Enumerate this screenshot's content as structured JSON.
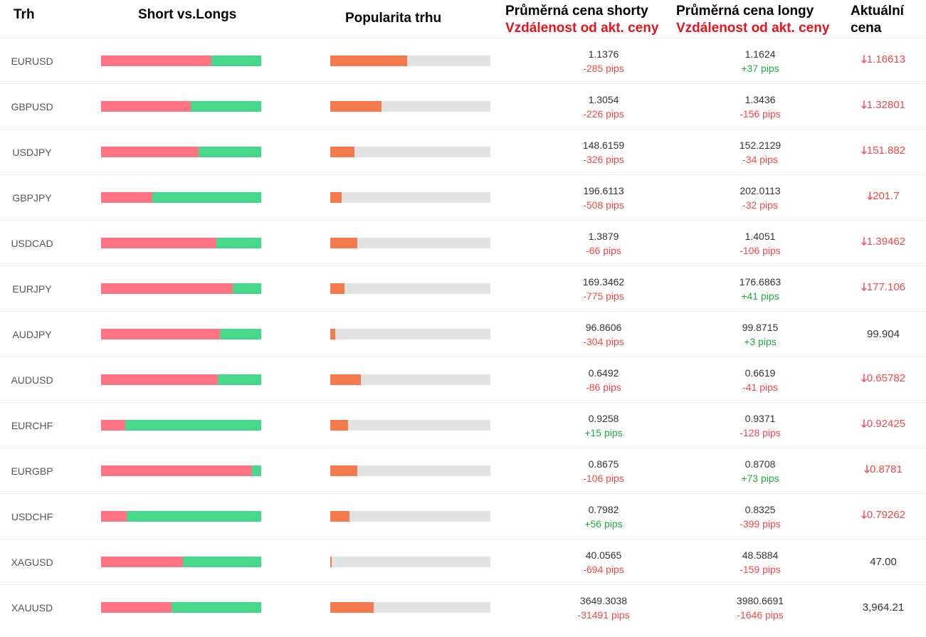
{
  "header": {
    "market": "Trh",
    "short_long": "Short vs.Longs",
    "popularity": "Popularita trhu",
    "avg_short": "Průměrná cena shorty",
    "avg_long": "Průměrná cena longy",
    "distance": "Vzdálenost od akt. ceny",
    "current_1": "Aktuální",
    "current_2": "cena"
  },
  "colors": {
    "short": "#ff7480",
    "long": "#48d88c",
    "popularity": "#f27a4b",
    "negative": "#f54646",
    "positive": "#1eaa3c"
  },
  "rows": [
    {
      "symbol": "EURUSD",
      "short_pct": 69,
      "popularity_pct": 48,
      "short_price": "1.1376",
      "short_dist": "-285 pips",
      "long_price": "1.1624",
      "long_dist": "+37 pips",
      "current": "1.16613",
      "trend": "down"
    },
    {
      "symbol": "GBPUSD",
      "short_pct": 56,
      "popularity_pct": 32,
      "short_price": "1.3054",
      "short_dist": "-226 pips",
      "long_price": "1.3436",
      "long_dist": "-156 pips",
      "current": "1.32801",
      "trend": "down"
    },
    {
      "symbol": "USDJPY",
      "short_pct": 61,
      "popularity_pct": 15,
      "short_price": "148.6159",
      "short_dist": "-326 pips",
      "long_price": "152.2129",
      "long_dist": "-34 pips",
      "current": "151.882",
      "trend": "down"
    },
    {
      "symbol": "GBPJPY",
      "short_pct": 32,
      "popularity_pct": 7,
      "short_price": "196.6113",
      "short_dist": "-508 pips",
      "long_price": "202.0113",
      "long_dist": "-32 pips",
      "current": "201.7",
      "trend": "down"
    },
    {
      "symbol": "USDCAD",
      "short_pct": 72,
      "popularity_pct": 17,
      "short_price": "1.3879",
      "short_dist": "-66 pips",
      "long_price": "1.4051",
      "long_dist": "-106 pips",
      "current": "1.39462",
      "trend": "down"
    },
    {
      "symbol": "EURJPY",
      "short_pct": 82,
      "popularity_pct": 9,
      "short_price": "169.3462",
      "short_dist": "-775 pips",
      "long_price": "176.6863",
      "long_dist": "+41 pips",
      "current": "177.106",
      "trend": "down"
    },
    {
      "symbol": "AUDJPY",
      "short_pct": 74,
      "popularity_pct": 3,
      "short_price": "96.8606",
      "short_dist": "-304 pips",
      "long_price": "99.8715",
      "long_dist": "+3 pips",
      "current": "99.904",
      "trend": "none"
    },
    {
      "symbol": "AUDUSD",
      "short_pct": 73,
      "popularity_pct": 19,
      "short_price": "0.6492",
      "short_dist": "-86 pips",
      "long_price": "0.6619",
      "long_dist": "-41 pips",
      "current": "0.65782",
      "trend": "down"
    },
    {
      "symbol": "EURCHF",
      "short_pct": 15,
      "popularity_pct": 11,
      "short_price": "0.9258",
      "short_dist": "+15 pips",
      "long_price": "0.9371",
      "long_dist": "-128 pips",
      "current": "0.92425",
      "trend": "down"
    },
    {
      "symbol": "EURGBP",
      "short_pct": 94,
      "popularity_pct": 17,
      "short_price": "0.8675",
      "short_dist": "-106 pips",
      "long_price": "0.8708",
      "long_dist": "+73 pips",
      "current": "0.8781",
      "trend": "down"
    },
    {
      "symbol": "USDCHF",
      "short_pct": 16,
      "popularity_pct": 12,
      "short_price": "0.7982",
      "short_dist": "+56 pips",
      "long_price": "0.8325",
      "long_dist": "-399 pips",
      "current": "0.79262",
      "trend": "down"
    },
    {
      "symbol": "XAGUSD",
      "short_pct": 51,
      "popularity_pct": 1,
      "short_price": "40.0565",
      "short_dist": "-694 pips",
      "long_price": "48.5884",
      "long_dist": "-159 pips",
      "current": "47.00",
      "trend": "none"
    },
    {
      "symbol": "XAUUSD",
      "short_pct": 44,
      "popularity_pct": 27,
      "short_price": "3649.3038",
      "short_dist": "-31491 pips",
      "long_price": "3980.6691",
      "long_dist": "-1646 pips",
      "current": "3,964.21",
      "trend": "none"
    }
  ]
}
